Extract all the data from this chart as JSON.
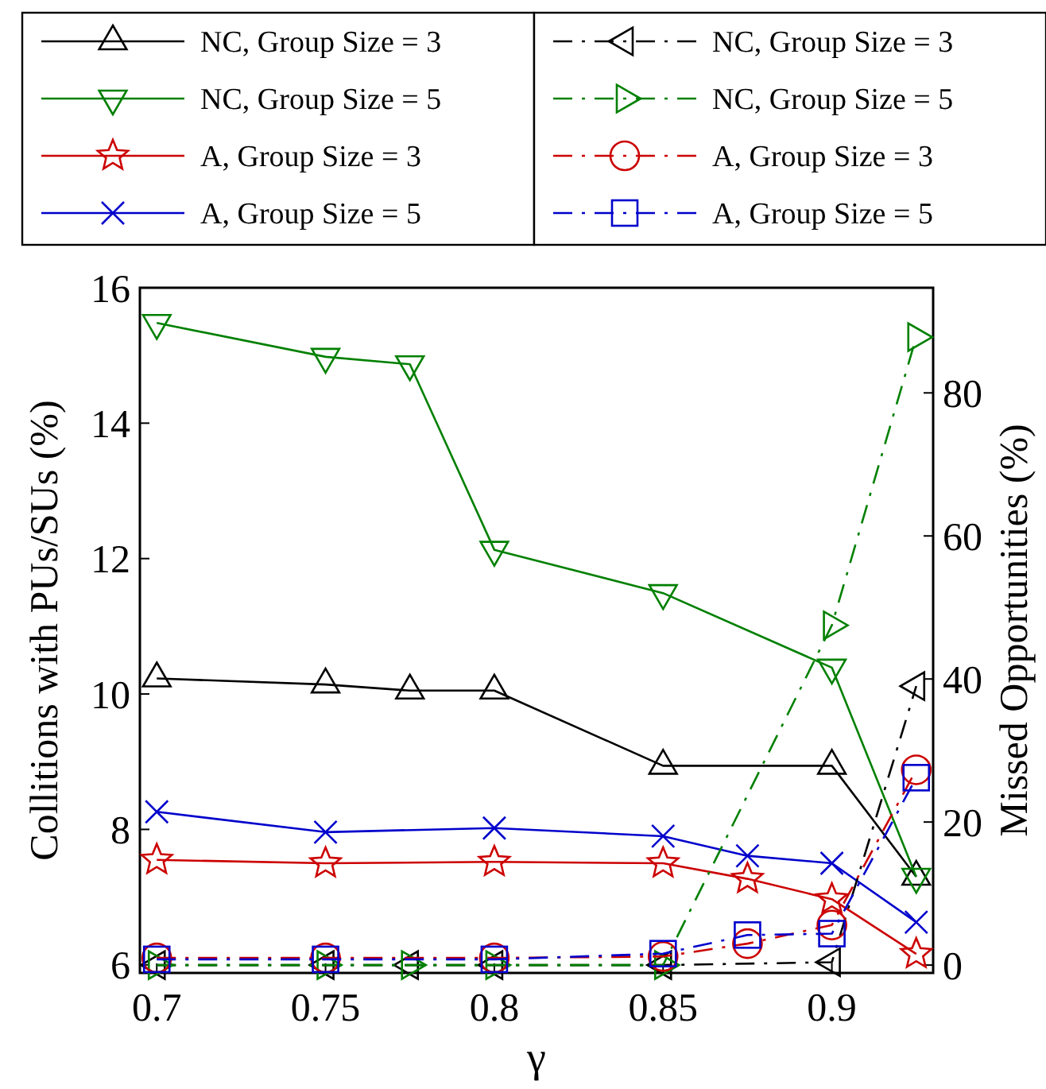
{
  "chart_data": {
    "type": "line",
    "xlabel": "γ",
    "ylabel": "Collitions with PUs/SUs (%)",
    "y2label": "Missed Opportunities (%)",
    "xlim": [
      0.695,
      0.93
    ],
    "xticks": [
      0.7,
      0.75,
      0.8,
      0.85,
      0.9
    ],
    "ylim": [
      5.88,
      16
    ],
    "yticks": [
      6,
      8,
      10,
      12,
      14,
      16
    ],
    "y2lim": [
      -1.1,
      94.7
    ],
    "y2ticks": [
      0,
      20,
      40,
      60,
      80
    ],
    "legend": "top",
    "grid": false,
    "series": [
      {
        "name": "NC, Group Size = 3",
        "color": "#000000",
        "marker": "triangle",
        "line_style": "solid",
        "x": [
          0.7,
          0.75,
          0.775,
          0.8,
          0.85,
          0.9,
          0.925
        ],
        "values": [
          10.23,
          10.14,
          10.05,
          10.05,
          8.94,
          8.94,
          7.3
        ]
      },
      {
        "name": "NC, Group Size = 5",
        "color": "#008000",
        "marker": "triangle-down",
        "line_style": "solid",
        "x": [
          0.7,
          0.75,
          0.775,
          0.8,
          0.85,
          0.9,
          0.925
        ],
        "values": [
          15.48,
          14.98,
          14.87,
          12.13,
          11.49,
          10.39,
          7.3
        ]
      },
      {
        "name": "A, Group Size = 3",
        "color": "#cc0000",
        "marker": "star",
        "line_style": "solid",
        "x": [
          0.7,
          0.75,
          0.8,
          0.85,
          0.875,
          0.9,
          0.925
        ],
        "values": [
          7.55,
          7.5,
          7.52,
          7.5,
          7.27,
          6.97,
          6.16
        ]
      },
      {
        "name": "A, Group Size = 5",
        "color": "#0000cc",
        "marker": "cross",
        "line_style": "solid",
        "x": [
          0.7,
          0.75,
          0.8,
          0.85,
          0.875,
          0.9,
          0.925
        ],
        "values": [
          8.26,
          7.96,
          8.02,
          7.9,
          7.61,
          7.5,
          6.63
        ]
      },
      {
        "name": "NC, Group Size = 3",
        "color": "#000000",
        "marker": "triangle-left",
        "line_style": "dashdot",
        "axis": "y2",
        "x": [
          0.7,
          0.75,
          0.775,
          0.8,
          0.85,
          0.9,
          0.925
        ],
        "values": [
          0,
          0,
          0,
          0,
          0,
          0.4,
          39
        ]
      },
      {
        "name": "NC, Group Size = 5",
        "color": "#008000",
        "marker": "triangle-right",
        "line_style": "dashdot",
        "axis": "y2",
        "x": [
          0.7,
          0.75,
          0.775,
          0.8,
          0.85,
          0.9,
          0.925
        ],
        "values": [
          0,
          0,
          0,
          0,
          0,
          47.5,
          87.8
        ]
      },
      {
        "name": "A, Group Size = 3",
        "color": "#cc0000",
        "marker": "circle",
        "line_style": "dashdot",
        "axis": "y2",
        "x": [
          0.7,
          0.75,
          0.8,
          0.85,
          0.875,
          0.9,
          0.925
        ],
        "values": [
          1,
          1,
          1,
          1.2,
          3,
          5.6,
          27.3
        ]
      },
      {
        "name": "A, Group Size = 5",
        "color": "#0000cc",
        "marker": "square",
        "line_style": "dashdot",
        "axis": "y2",
        "x": [
          0.7,
          0.75,
          0.8,
          0.85,
          0.875,
          0.9,
          0.925
        ],
        "values": [
          0.8,
          0.8,
          0.8,
          1.6,
          4.2,
          4.4,
          26.2
        ]
      }
    ]
  }
}
